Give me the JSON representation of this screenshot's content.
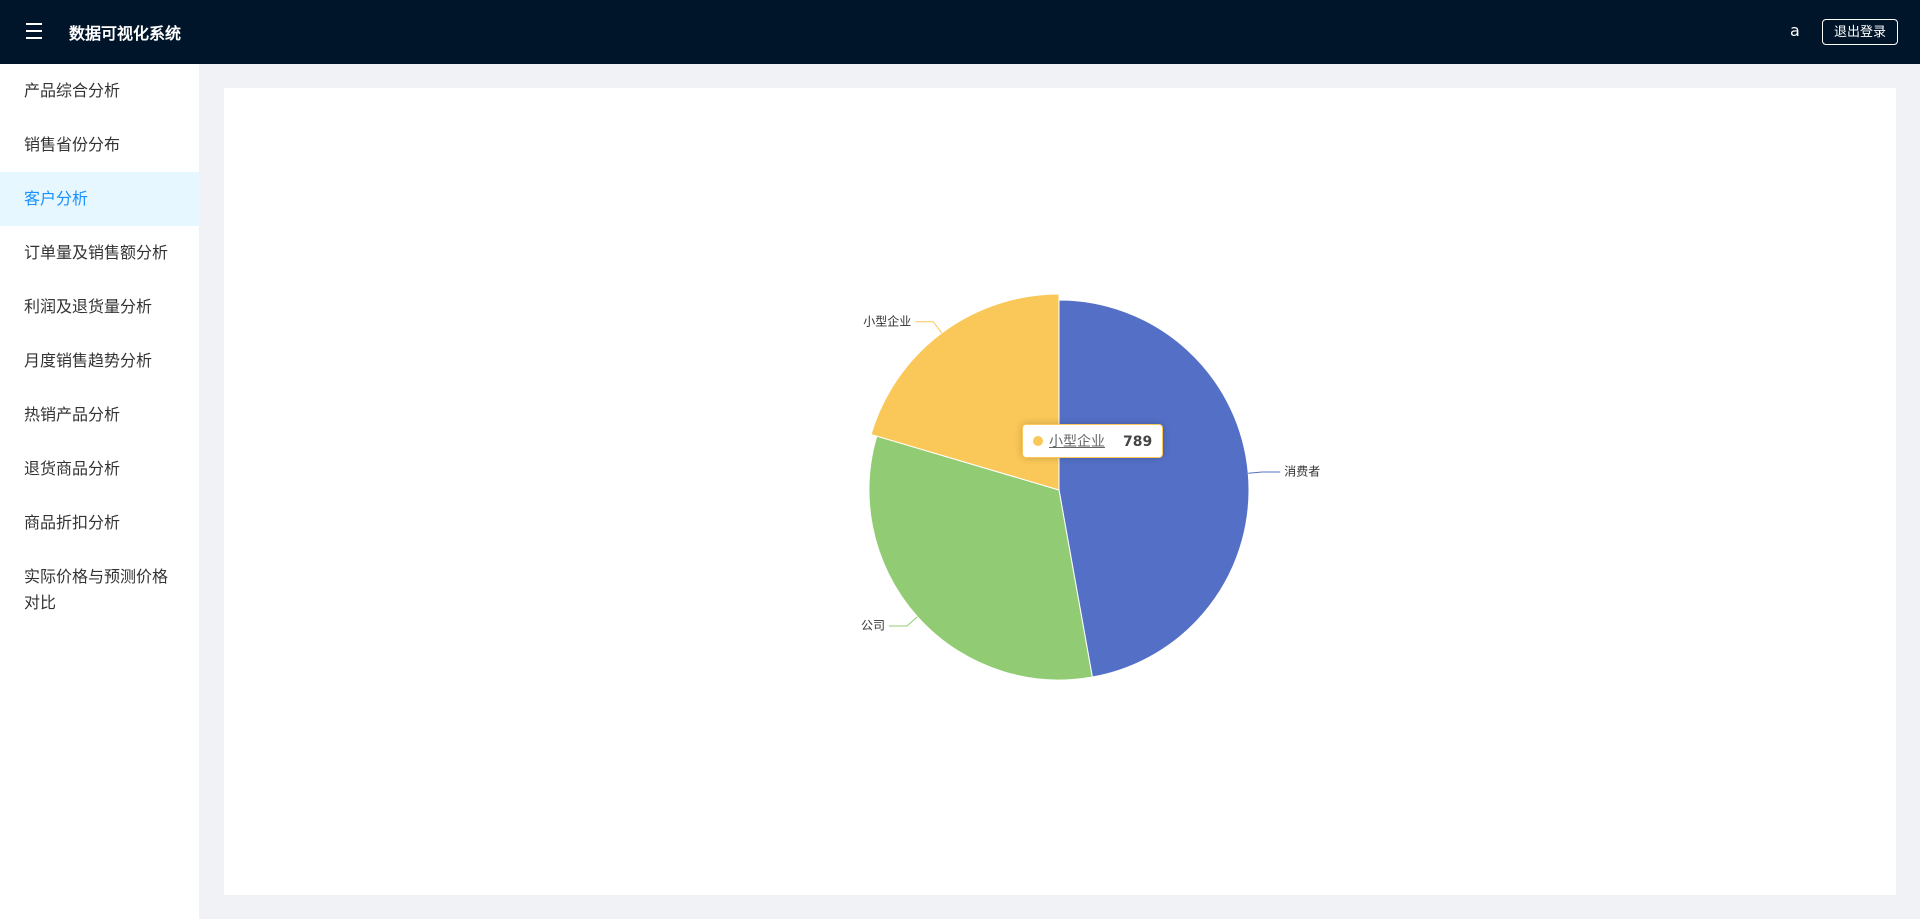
{
  "header": {
    "title": "数据可视化系统",
    "user": "a",
    "logout": "退出登录"
  },
  "menu": [
    "产品综合分析",
    "销售省份分布",
    "客户分析",
    "订单量及销售额分析",
    "利润及退货量分析",
    "月度销售趋势分析",
    "热销产品分析",
    "退货商品分析",
    "商品折扣分析",
    "实际价格与预测价格对比"
  ],
  "chart_data": {
    "type": "pie",
    "categories": [
      "消费者",
      "公司",
      "小型企业"
    ],
    "values": [
      1823,
      1251,
      789
    ],
    "colors": [
      "#5470c6",
      "#91cc75",
      "#fac858"
    ]
  }
}
